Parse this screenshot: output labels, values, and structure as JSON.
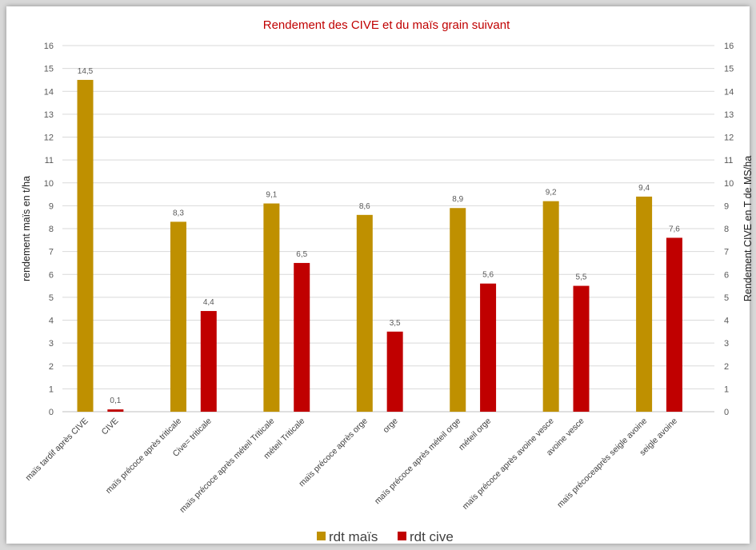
{
  "chart_data": {
    "type": "bar",
    "title": "Rendement des CIVE et du maïs grain suivant",
    "ylabel": "rendement maïs en t/ha",
    "y2label": "Rendement CIVE en T de MS/ha",
    "ylim": [
      0,
      16
    ],
    "yticks": [
      0,
      1,
      2,
      3,
      4,
      5,
      6,
      7,
      8,
      9,
      10,
      11,
      12,
      13,
      14,
      15,
      16
    ],
    "grid": true,
    "legend_position": "bottom",
    "categories": [
      "maïs tardif après CIVE",
      "CIVE",
      "maïs précoce après triticale",
      "Cive= triticale",
      "maïs précoce après méteil Triticale",
      "méteil Triticale",
      "maïs précoce après orge",
      "orge",
      "maïs précoce après méteil orge",
      "méteil orge",
      "maïs précoce après avoine vesce",
      "avoine vesce",
      "maïs précoceaprès seigle avoine",
      "seigle avoine"
    ],
    "series": [
      {
        "name": "rdt maïs",
        "color": "#bf9000",
        "values": [
          14.5,
          null,
          8.3,
          null,
          9.1,
          null,
          8.6,
          null,
          8.9,
          null,
          9.2,
          null,
          9.4,
          null
        ]
      },
      {
        "name": "rdt cive",
        "color": "#c00000",
        "values": [
          null,
          0.1,
          null,
          4.4,
          null,
          6.5,
          null,
          3.5,
          null,
          5.6,
          null,
          5.5,
          null,
          7.6
        ]
      }
    ],
    "data_labels": [
      "14,5",
      "0,1",
      "8,3",
      "4,4",
      "9,1",
      "6,5",
      "8,6",
      "3,5",
      "8,9",
      "5,6",
      "9,2",
      "5,5",
      "9,4",
      "7,6"
    ]
  },
  "colors": {
    "title": "#c00000",
    "grid": "#d9d9d9",
    "axis": "#bfbfbf"
  }
}
